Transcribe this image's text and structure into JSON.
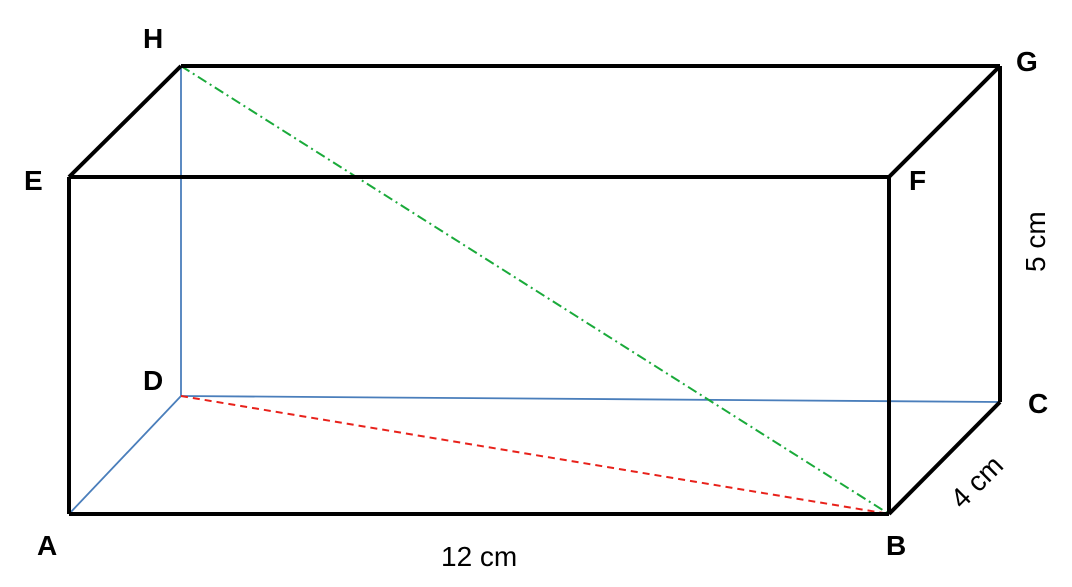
{
  "vertices": {
    "A": "A",
    "B": "B",
    "C": "C",
    "D": "D",
    "E": "E",
    "F": "F",
    "G": "G",
    "H": "H"
  },
  "dimensions": {
    "length": "12 cm",
    "width": "4 cm",
    "height": "5 cm"
  },
  "colors": {
    "visible_edge": "#000000",
    "hidden_edge": "#4a7ebb",
    "space_diagonal_HB": "#1aaa3a",
    "face_diagonal_DB": "#e8211a"
  }
}
